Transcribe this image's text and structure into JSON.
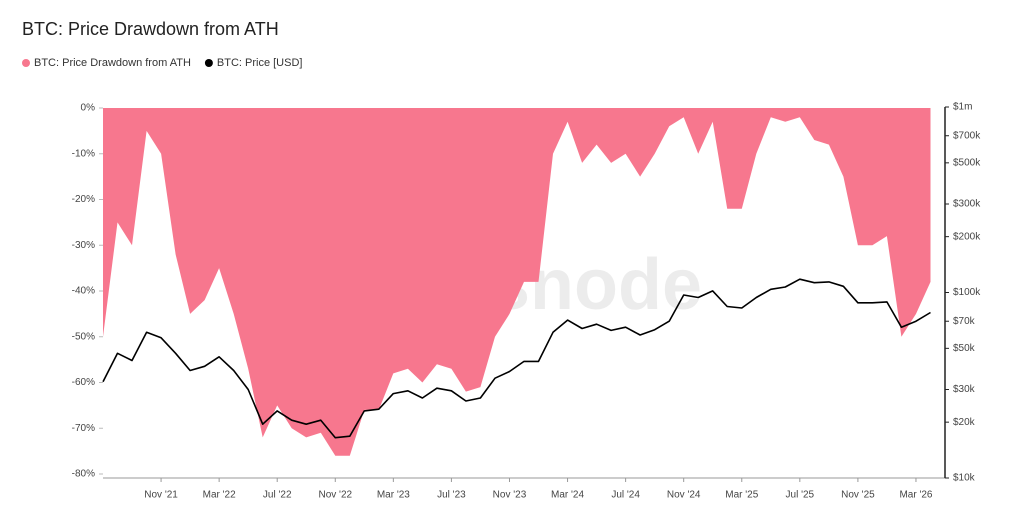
{
  "chart_data": {
    "type": "area_line",
    "title": "BTC: Price Drawdown from ATH",
    "watermark": "glassnode",
    "x": [
      "2021-07",
      "2021-08",
      "2021-09",
      "2021-10",
      "2021-11",
      "2021-12",
      "2022-01",
      "2022-02",
      "2022-03",
      "2022-04",
      "2022-05",
      "2022-06",
      "2022-07",
      "2022-08",
      "2022-09",
      "2022-10",
      "2022-11",
      "2022-12",
      "2023-01",
      "2023-02",
      "2023-03",
      "2023-04",
      "2023-05",
      "2023-06",
      "2023-07",
      "2023-08",
      "2023-09",
      "2023-10",
      "2023-11",
      "2023-12",
      "2024-01",
      "2024-02",
      "2024-03",
      "2024-04",
      "2024-05",
      "2024-06",
      "2024-07",
      "2024-08",
      "2024-09",
      "2024-10",
      "2024-11",
      "2024-12",
      "2025-01",
      "2025-02",
      "2025-03",
      "2025-04",
      "2025-05",
      "2025-06",
      "2025-07",
      "2025-08",
      "2025-09",
      "2025-10",
      "2025-11",
      "2025-12",
      "2026-01",
      "2026-02",
      "2026-03",
      "2026-04"
    ],
    "series": [
      {
        "name": "BTC: Price Drawdown from ATH",
        "color": "#f7778e",
        "kind": "area",
        "values": [
          -50,
          -25,
          -30,
          -5,
          -10,
          -32,
          -45,
          -42,
          -35,
          -45,
          -57,
          -72,
          -65,
          -70,
          -72,
          -71,
          -76,
          -76,
          -66,
          -66,
          -58,
          -57,
          -60,
          -56,
          -57,
          -62,
          -61,
          -50,
          -45,
          -38,
          -38,
          -10,
          -3,
          -12,
          -8,
          -12,
          -10,
          -15,
          -10,
          -4,
          -2,
          -10,
          -3,
          -22,
          -22,
          -10,
          -2,
          -3,
          -2,
          -7,
          -8,
          -15,
          -30,
          -30,
          -28,
          -50,
          -45,
          -38
        ]
      },
      {
        "name": "BTC: Price [USD]",
        "color": "#000000",
        "kind": "line",
        "axis": "y2",
        "values": [
          33000,
          47000,
          43000,
          61000,
          57000,
          47000,
          38000,
          40000,
          45000,
          38000,
          30000,
          19500,
          23000,
          20500,
          19500,
          20500,
          16500,
          16800,
          23000,
          23500,
          28500,
          29500,
          27000,
          30500,
          29500,
          26000,
          27000,
          34500,
          37500,
          42500,
          42500,
          61000,
          71000,
          64000,
          67500,
          62500,
          65000,
          59000,
          63000,
          70000,
          97000,
          94000,
          102000,
          84000,
          82500,
          94000,
          104000,
          107000,
          118000,
          113000,
          114000,
          108000,
          88000,
          88000,
          89000,
          65000,
          70000,
          78000
        ]
      }
    ],
    "xlim": [
      "2021-07",
      "2026-05"
    ],
    "xticks": [
      {
        "value": "2021-11",
        "label": "Nov '21"
      },
      {
        "value": "2022-03",
        "label": "Mar '22"
      },
      {
        "value": "2022-07",
        "label": "Jul '22"
      },
      {
        "value": "2022-11",
        "label": "Nov '22"
      },
      {
        "value": "2023-03",
        "label": "Mar '23"
      },
      {
        "value": "2023-07",
        "label": "Jul '23"
      },
      {
        "value": "2023-11",
        "label": "Nov '23"
      },
      {
        "value": "2024-03",
        "label": "Mar '24"
      },
      {
        "value": "2024-07",
        "label": "Jul '24"
      },
      {
        "value": "2024-11",
        "label": "Nov '24"
      },
      {
        "value": "2025-03",
        "label": "Mar '25"
      },
      {
        "value": "2025-07",
        "label": "Jul '25"
      },
      {
        "value": "2025-11",
        "label": "Nov '25"
      },
      {
        "value": "2026-03",
        "label": "Mar '26"
      }
    ],
    "ylim": [
      -80,
      0
    ],
    "yticks": [
      {
        "value": 0,
        "label": "0%"
      },
      {
        "value": -10,
        "label": "-10%"
      },
      {
        "value": -20,
        "label": "-20%"
      },
      {
        "value": -30,
        "label": "-30%"
      },
      {
        "value": -40,
        "label": "-40%"
      },
      {
        "value": -50,
        "label": "-50%"
      },
      {
        "value": -60,
        "label": "-60%"
      },
      {
        "value": -70,
        "label": "-70%"
      },
      {
        "value": -80,
        "label": "-80%"
      }
    ],
    "y2scale": "log",
    "y2lim": [
      10000,
      1000000
    ],
    "y2ticks": [
      {
        "value": 10000,
        "label": "$10k"
      },
      {
        "value": 20000,
        "label": "$20k"
      },
      {
        "value": 30000,
        "label": "$30k"
      },
      {
        "value": 50000,
        "label": "$50k"
      },
      {
        "value": 70000,
        "label": "$70k"
      },
      {
        "value": 100000,
        "label": "$100k"
      },
      {
        "value": 200000,
        "label": "$200k"
      },
      {
        "value": 300000,
        "label": "$300k"
      },
      {
        "value": 500000,
        "label": "$500k"
      },
      {
        "value": 700000,
        "label": "$700k"
      },
      {
        "value": 1000000,
        "label": "$1m"
      }
    ]
  }
}
